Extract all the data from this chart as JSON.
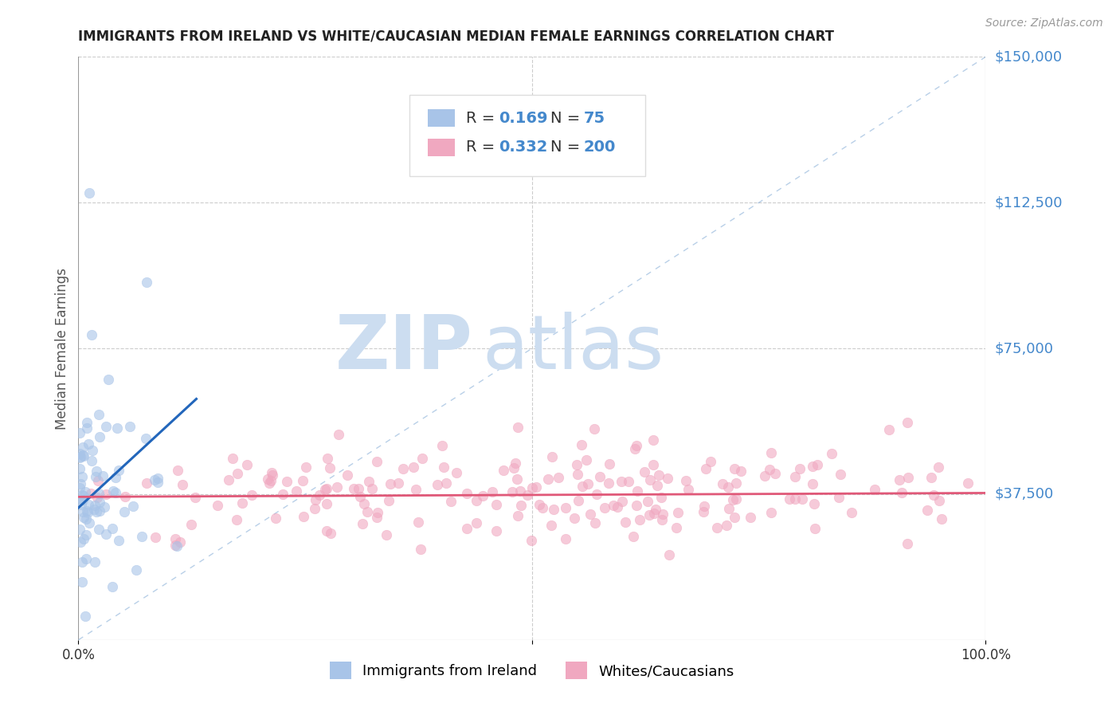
{
  "title": "IMMIGRANTS FROM IRELAND VS WHITE/CAUCASIAN MEDIAN FEMALE EARNINGS CORRELATION CHART",
  "source": "Source: ZipAtlas.com",
  "ylabel": "Median Female Earnings",
  "xlim": [
    0,
    1
  ],
  "ylim": [
    0,
    150000
  ],
  "yticks": [
    0,
    37500,
    75000,
    112500,
    150000
  ],
  "xtick_labels": [
    "0.0%",
    "100.0%"
  ],
  "legend_R1": "0.169",
  "legend_N1": "75",
  "legend_R2": "0.332",
  "legend_N2": "200",
  "legend_label1": "Immigrants from Ireland",
  "legend_label2": "Whites/Caucasians",
  "color_blue": "#a8c4e8",
  "color_pink": "#f0a8c0",
  "color_blue_line": "#2266bb",
  "color_pink_line": "#e05878",
  "color_diag": "#8ab0d8",
  "color_title": "#222222",
  "watermark_color": "#ccddf0",
  "grid_color": "#cccccc",
  "background_color": "#ffffff",
  "right_label_color": "#4488cc",
  "legend_text_color": "#333333",
  "legend_val_color": "#4488cc",
  "seed": 42,
  "N1": 75,
  "N2": 200,
  "blue_trend_x0": 0.0,
  "blue_trend_y0": 34000,
  "blue_trend_x1": 0.13,
  "blue_trend_y1": 62000,
  "pink_trend_x0": 0.0,
  "pink_trend_y0": 36800,
  "pink_trend_x1": 1.0,
  "pink_trend_y1": 37800
}
